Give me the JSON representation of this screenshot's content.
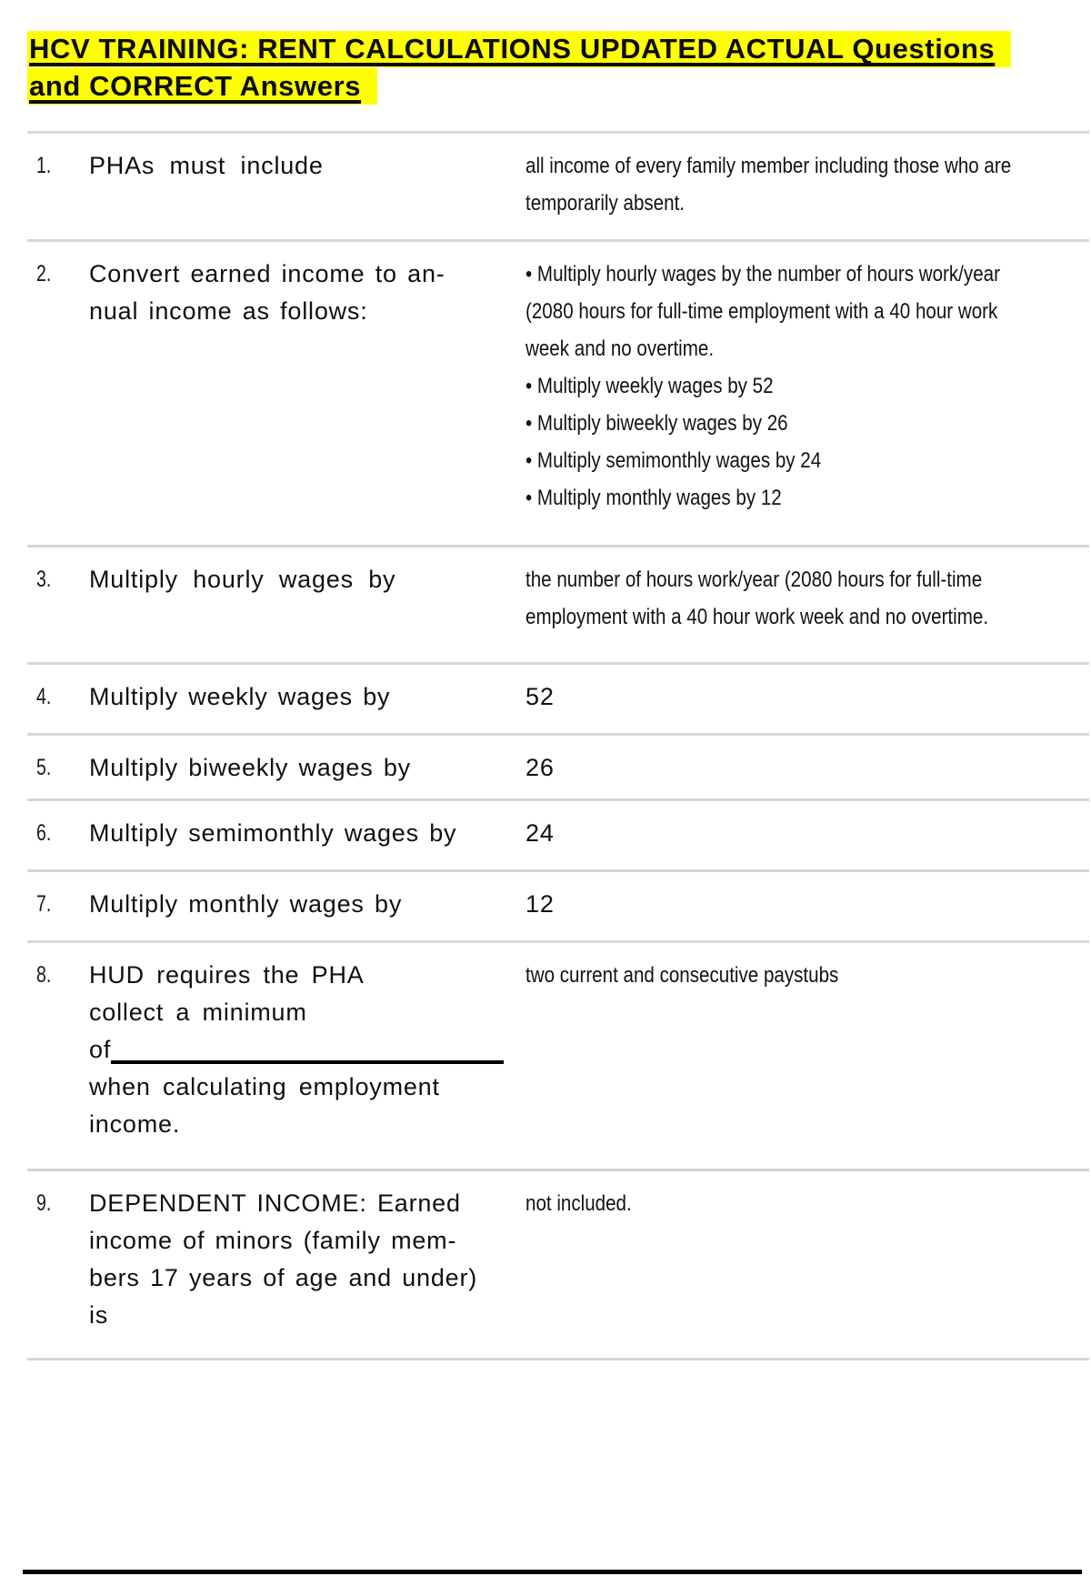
{
  "page": {
    "title": "HCV TRAINING: RENT CALCULATIONS UPDATED ACTUAL Questions\nand CORRECT Answers"
  },
  "colors": {
    "title_highlight": "#feff00",
    "title_text": "#0c0c0c",
    "divider": "#d5d5dc",
    "bottom_rule": "#000000",
    "body_text": "#111111"
  },
  "rows": [
    {
      "num": "1.",
      "question": "PHAs must include",
      "answer": "all income of every family member including those who are\ntemporarily absent."
    },
    {
      "num": "2.",
      "question": "Convert earned income to an-\nnual income as follows:",
      "bullets": [
        "Multiply hourly wages by the number of hours work/year\n(2080 hours for full-time employment with a 40 hour work\nweek and no overtime.",
        "Multiply weekly wages by 52",
        "Multiply biweekly wages by 26",
        "Multiply semimonthly wages by 24",
        "Multiply monthly wages by 12"
      ]
    },
    {
      "num": "3.",
      "question": "Multiply hourly wages by",
      "answer": "the number of hours work/year (2080 hours for full-time\nemployment with a 40 hour work week and no overtime."
    },
    {
      "num": "4.",
      "question": "Multiply weekly wages by",
      "value": "52"
    },
    {
      "num": "5.",
      "question": "Multiply biweekly wages by",
      "value": "26"
    },
    {
      "num": "6.",
      "question": "Multiply semimonthly wages by",
      "value": "24"
    },
    {
      "num": "7.",
      "question": "Multiply monthly wages by",
      "value": "12"
    },
    {
      "num": "8.",
      "question": "HUD requires the PHA\ncollect a minimum\nof[[blank]]\nwhen calculating employment\nincome.",
      "answer": "two current and consecutive paystubs"
    },
    {
      "num": "9.",
      "question": "DEPENDENT INCOME: Earned\nincome of minors (family mem-\nbers 17 years of age and under)\nis",
      "answer": "not included."
    }
  ]
}
